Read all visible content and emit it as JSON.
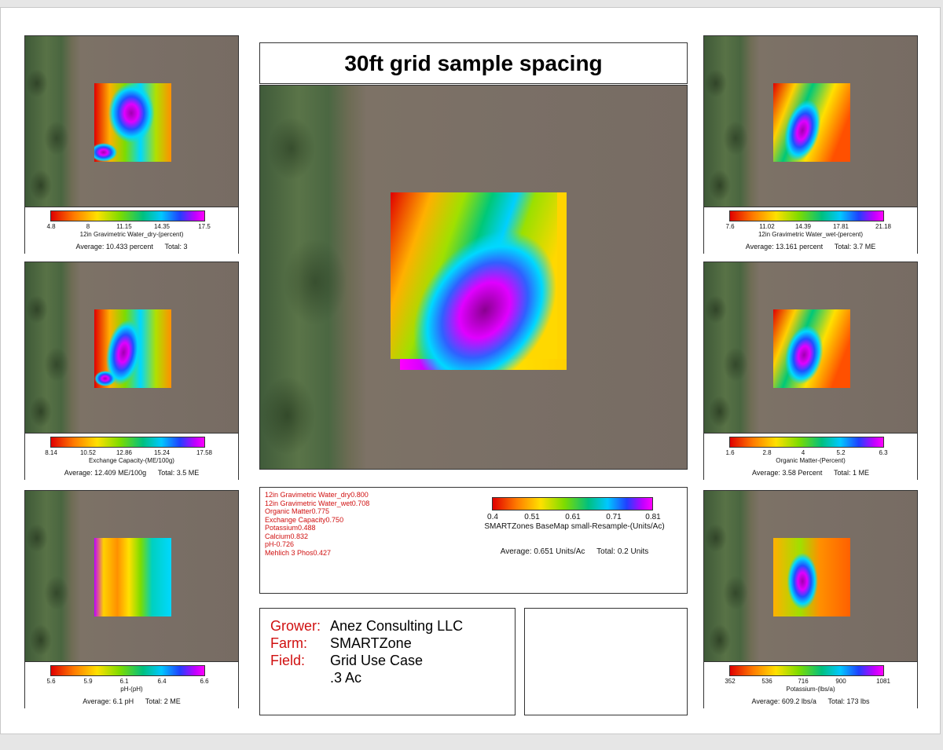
{
  "title": "30ft grid sample spacing",
  "panels": [
    {
      "id": "water-dry",
      "ticks": [
        "4.8",
        "8",
        "11.15",
        "14.35",
        "17.5"
      ],
      "label": "12in Gravimetric Water_dry-(percent)",
      "average": "Average: 10.433 percent",
      "total": "Total: 3"
    },
    {
      "id": "water-wet",
      "ticks": [
        "7.6",
        "11.02",
        "14.39",
        "17.81",
        "21.18"
      ],
      "label": "12in Gravimetric Water_wet-(percent)",
      "average": "Average: 13.161 percent",
      "total": "Total: 3.7 ME"
    },
    {
      "id": "exchange-capacity",
      "ticks": [
        "8.14",
        "10.52",
        "12.86",
        "15.24",
        "17.58"
      ],
      "label": "Exchange Capacity-(ME/100g)",
      "average": "Average: 12.409 ME/100g",
      "total": "Total: 3.5 ME"
    },
    {
      "id": "organic-matter",
      "ticks": [
        "1.6",
        "2.8",
        "4",
        "5.2",
        "6.3"
      ],
      "label": "Organic Matter-(Percent)",
      "average": "Average: 3.58 Percent",
      "total": "Total: 1 ME"
    },
    {
      "id": "ph",
      "ticks": [
        "5.6",
        "5.9",
        "6.1",
        "6.4",
        "6.6"
      ],
      "label": "pH-(pH)",
      "average": "Average: 6.1 pH",
      "total": "Total: 2 ME"
    },
    {
      "id": "potassium",
      "ticks": [
        "352",
        "536",
        "716",
        "900",
        "1081"
      ],
      "label": "Potassium-(lbs/a)",
      "average": "Average: 609.2 lbs/a",
      "total": "Total: 173 lbs"
    }
  ],
  "correlations": [
    "12in  Gravimetric  Water_dry0.800",
    "12in  Gravimetric  Water_wet0.708",
    "Organic  Matter0.775",
    "Exchange  Capacity0.750",
    "Potassium0.488",
    "Calcium0.832",
    "pH-0.726",
    "Mehlich  3  Phos0.427"
  ],
  "basemap": {
    "ticks": [
      "0.4",
      "0.51",
      "0.61",
      "0.71",
      "0.81"
    ],
    "label": "SMARTZones BaseMap small-Resample-(Units/Ac)",
    "average": "Average: 0.651 Units/Ac",
    "total": "Total: 0.2 Units"
  },
  "grower": {
    "grower_key": "Grower:",
    "grower_val": "Anez Consulting LLC",
    "farm_key": "Farm:",
    "farm_val": "SMARTZone",
    "field_key": "Field:",
    "field_val": "Grid Use Case",
    "area_val": ".3 Ac"
  },
  "colors": {
    "accent_red": "#d01010",
    "border": "#333333"
  }
}
